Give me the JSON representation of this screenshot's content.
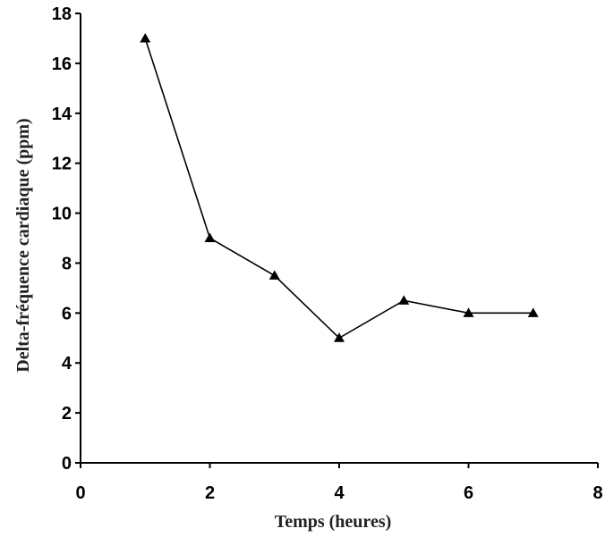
{
  "chart_data": {
    "type": "line",
    "title": "",
    "xlabel": "Temps (heures)",
    "ylabel": "Delta-fréquence cardiaque (ppm)",
    "xlim": [
      0,
      8
    ],
    "ylim": [
      0,
      18
    ],
    "xticks": [
      0,
      2,
      4,
      6,
      8
    ],
    "yticks": [
      0,
      2,
      4,
      6,
      8,
      10,
      12,
      14,
      16,
      18
    ],
    "grid": false,
    "legend": "none",
    "marker": "triangle",
    "series": [
      {
        "x": [
          1,
          2,
          3,
          4,
          5,
          6,
          7
        ],
        "y": [
          17,
          9,
          7.5,
          5,
          6.5,
          6,
          6
        ]
      }
    ],
    "colors": {
      "line": "#000000",
      "marker": "#000000",
      "axis": "#000000"
    }
  }
}
